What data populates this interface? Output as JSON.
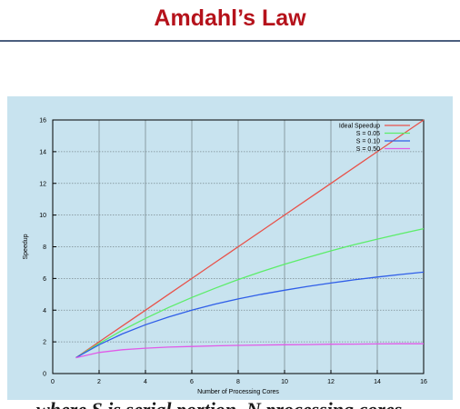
{
  "slide": {
    "title": "Amdahl’s Law",
    "title_color": "#b5121b",
    "rule_color": "#4a5e7e",
    "panel_color": "#c8e3ef",
    "cutoff_text": "where S is serial portion, N processing cores"
  },
  "chart_data": {
    "type": "line",
    "title": "",
    "xlabel": "Number of Processing Cores",
    "ylabel": "Speedup",
    "xlim": [
      0,
      16
    ],
    "ylim": [
      0,
      16
    ],
    "xticks": [
      0,
      2,
      4,
      6,
      8,
      10,
      12,
      14,
      16
    ],
    "yticks": [
      0,
      2,
      4,
      6,
      8,
      10,
      12,
      14,
      16
    ],
    "grid": true,
    "legend_position": "top-right",
    "x": [
      1,
      2,
      3,
      4,
      5,
      6,
      7,
      8,
      9,
      10,
      11,
      12,
      13,
      14,
      15,
      16
    ],
    "series": [
      {
        "name": "Ideal Speedup",
        "color": "#e8524a",
        "values": [
          1,
          2,
          3,
          4,
          5,
          6,
          7,
          8,
          9,
          10,
          11,
          12,
          13,
          14,
          15,
          16
        ]
      },
      {
        "name": "S = 0.05",
        "color": "#5ced6a",
        "values": [
          1,
          1.9,
          2.73,
          3.48,
          4.17,
          4.8,
          5.38,
          5.93,
          6.43,
          6.9,
          7.33,
          7.74,
          8.13,
          8.48,
          8.82,
          9.14
        ]
      },
      {
        "name": "S = 0.10",
        "color": "#2f5ee8",
        "values": [
          1,
          1.82,
          2.5,
          3.08,
          3.57,
          4.0,
          4.38,
          4.71,
          5.0,
          5.26,
          5.5,
          5.71,
          5.91,
          6.09,
          6.25,
          6.4
        ]
      },
      {
        "name": "S = 0.50",
        "color": "#e05ae8",
        "values": [
          1,
          1.33,
          1.5,
          1.6,
          1.67,
          1.71,
          1.75,
          1.78,
          1.8,
          1.82,
          1.83,
          1.85,
          1.86,
          1.87,
          1.88,
          1.88
        ]
      }
    ]
  }
}
